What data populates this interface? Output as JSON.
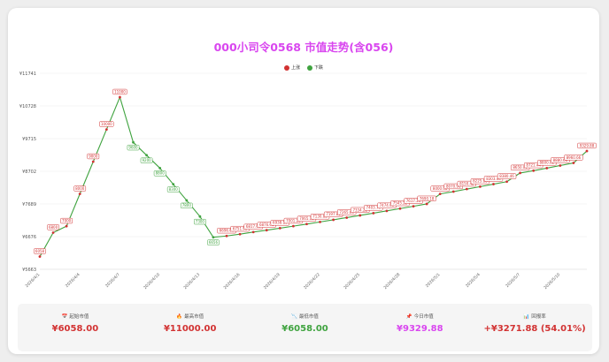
{
  "chart_data": {
    "type": "line",
    "title": "000小司令0568 市值走势(含056)",
    "legend": {
      "position": "top-center",
      "entries": [
        {
          "name": "上涨",
          "color": "#d23232"
        },
        {
          "name": "下跌",
          "color": "#3fa33f"
        }
      ]
    },
    "y_ticks": [
      "¥11741",
      "¥10728",
      "¥9715",
      "¥8702",
      "¥7689",
      "¥6676",
      "¥5663"
    ],
    "ylim": [
      5663,
      11741
    ],
    "x_ticks": [
      "2026/4/1",
      "2026/4/4",
      "2026/4/7",
      "2026/4/10",
      "2026/4/13",
      "2026/4/16",
      "2026/4/19",
      "2026/4/22",
      "2026/4/25",
      "2026/4/28",
      "2026/5/1",
      "2026/5/4",
      "2026/5/7",
      "2026/5/10"
    ],
    "grid": "horizontal",
    "points": [
      {
        "x": "2026/4/1",
        "y": 6058
      },
      {
        "x": "2026/4/2",
        "y": 6800
      },
      {
        "x": "2026/4/3",
        "y": 7000
      },
      {
        "x": "2026/4/4",
        "y": 8000
      },
      {
        "x": "2026/4/5",
        "y": 9000
      },
      {
        "x": "2026/4/6",
        "y": 10000
      },
      {
        "x": "2026/4/7",
        "y": 11000
      },
      {
        "x": "2026/4/8",
        "y": 9600
      },
      {
        "x": "2026/4/9",
        "y": 9200
      },
      {
        "x": "2026/4/10",
        "y": 8800
      },
      {
        "x": "2026/4/11",
        "y": 8300
      },
      {
        "x": "2026/4/12",
        "y": 7800
      },
      {
        "x": "2026/4/13",
        "y": 7300
      },
      {
        "x": "2026/4/14",
        "y": 6656
      },
      {
        "x": "2026/4/15",
        "y": 6696.06
      },
      {
        "x": "2026/4/16",
        "y": 6751.98
      },
      {
        "x": "2026/4/17",
        "y": 6817.06
      },
      {
        "x": "2026/4/18",
        "y": 6876.06
      },
      {
        "x": "2026/4/19",
        "y": 6938.16
      },
      {
        "x": "2026/4/20",
        "y": 7001.28
      },
      {
        "x": "2026/4/21",
        "y": 7065.16
      },
      {
        "x": "2026/4/22",
        "y": 7130.82
      },
      {
        "x": "2026/4/23",
        "y": 7197.88
      },
      {
        "x": "2026/4/24",
        "y": 7265.66
      },
      {
        "x": "2026/4/25",
        "y": 7334.22
      },
      {
        "x": "2026/4/26",
        "y": 7403.76
      },
      {
        "x": "2026/4/27",
        "y": 7474.06
      },
      {
        "x": "2026/4/28",
        "y": 7545.22
      },
      {
        "x": "2026/4/29",
        "y": 7617.26
      },
      {
        "x": "2026/4/30",
        "y": 7690.18
      },
      {
        "x": "2026/5/1",
        "y": 8000.08
      },
      {
        "x": "2026/5/2",
        "y": 8070.96
      },
      {
        "x": "2026/5/3",
        "y": 8150.42
      },
      {
        "x": "2026/5/4",
        "y": 8225.88
      },
      {
        "x": "2026/5/5",
        "y": 8303.44
      },
      {
        "x": "2026/5/6",
        "y": 8380.46
      },
      {
        "x": "2026/5/7",
        "y": 8650.08
      },
      {
        "x": "2026/5/8",
        "y": 8721.44
      },
      {
        "x": "2026/5/9",
        "y": 8800.02
      },
      {
        "x": "2026/5/10",
        "y": 8880.66
      },
      {
        "x": "2026/5/11",
        "y": 8960.66
      },
      {
        "x": "2026/5/12",
        "y": 9329.88
      }
    ]
  },
  "stats": [
    {
      "icon": "📅",
      "icon_name": "calendar-icon",
      "label": "起始市值",
      "value": "¥6058.00",
      "color": "#d23232"
    },
    {
      "icon": "🔥",
      "icon_name": "fire-icon",
      "label": "最高市值",
      "value": "¥11000.00",
      "color": "#d23232"
    },
    {
      "icon": "📉",
      "icon_name": "chart-down-icon",
      "label": "最低市值",
      "value": "¥6058.00",
      "color": "#3fa33f"
    },
    {
      "icon": "📌",
      "icon_name": "pin-icon",
      "label": "今日市值",
      "value": "¥9329.88",
      "color": "#d946ef"
    },
    {
      "icon": "📊",
      "icon_name": "bar-chart-icon",
      "label": "回报率",
      "value": "+¥3271.88 (54.01%)",
      "color": "#d23232"
    }
  ]
}
